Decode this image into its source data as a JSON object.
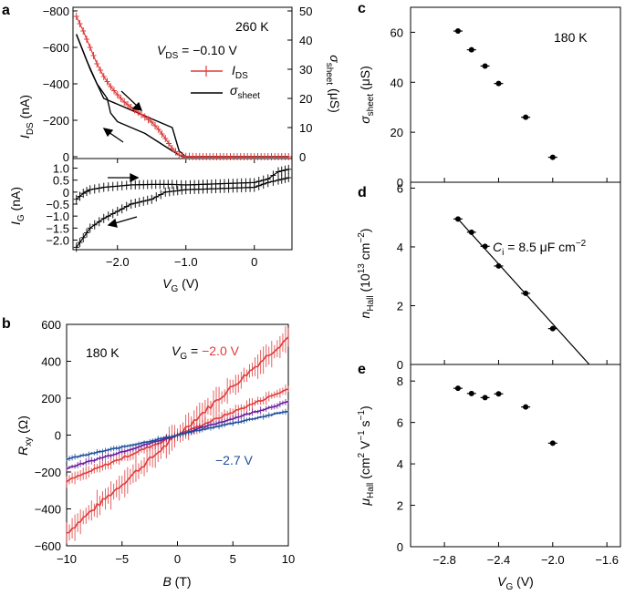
{
  "colors": {
    "ids": "#e03a3a",
    "sigma": "#000000",
    "ig": "#000000",
    "b_red": "#e03a3a",
    "b_purple": "#6a1b9a",
    "b_blue": "#1f4e99",
    "points": "#000000"
  },
  "chart_data": [
    {
      "panel": "a",
      "type": "line",
      "annotations": {
        "temperature": "260 K",
        "vds": "V",
        "vds_sub": "DS",
        "vds_value": " = −0.10 V"
      },
      "legend": [
        {
          "key": "ids",
          "name": "I",
          "sub": "DS"
        },
        {
          "key": "sigma",
          "name": "σ",
          "sub": "sheet"
        }
      ],
      "top": {
        "ylabel_left": {
          "main": "I",
          "sub": "DS",
          "unit": " (nA)"
        },
        "ylabel_right": {
          "main": "σ",
          "sub": "sheet",
          "unit": " (μS)"
        },
        "ylim_left": [
          0,
          -800
        ],
        "yticks_left": [
          "−800",
          "−600",
          "−400",
          "−200",
          "0"
        ],
        "ytick_values_left": [
          -800,
          -600,
          -400,
          -200,
          0
        ],
        "ylim_right": [
          0,
          50
        ],
        "yticks_right": [
          "50",
          "40",
          "30",
          "20",
          "10",
          "0"
        ],
        "ytick_values_right": [
          50,
          40,
          30,
          20,
          10,
          0
        ],
        "ids_sweep": {
          "x": [
            -2.6,
            -2.5,
            -2.4,
            -2.3,
            -2.2,
            -2.1,
            -2.0,
            -1.9,
            -1.8,
            -1.7,
            -1.6,
            -1.5,
            -1.4,
            -1.3,
            -1.2,
            -1.1,
            -1.0,
            -0.8,
            -0.5,
            0.0,
            0.5
          ],
          "y": [
            -770,
            -690,
            -600,
            -510,
            -440,
            -385,
            -340,
            -300,
            -270,
            -245,
            -218,
            -190,
            -150,
            -100,
            -45,
            -10,
            -2,
            0,
            0,
            0,
            0
          ]
        },
        "sigma_sweep_down": {
          "x": [
            0.5,
            -1.05,
            -1.05,
            -1.2,
            -1.4,
            -1.6,
            -1.8,
            -2.0,
            -2.1,
            -2.15,
            -2.3,
            -2.45,
            -2.6
          ],
          "y": [
            0,
            0,
            0,
            2,
            5,
            8,
            10,
            12,
            15,
            20,
            25,
            33,
            42
          ]
        },
        "sigma_sweep_up": {
          "x": [
            -2.6,
            -2.5,
            -2.4,
            -2.3,
            -2.2,
            -2.0,
            -1.8,
            -1.6,
            -1.4,
            -1.2,
            -1.1,
            -1.0,
            0.5
          ],
          "y": [
            42,
            36,
            30,
            25,
            20,
            18,
            16,
            14,
            12,
            10,
            2,
            0,
            0
          ]
        }
      },
      "bottom": {
        "ylabel": {
          "main": "I",
          "sub": "G",
          "unit": " (nA)"
        },
        "ylim": [
          -2.4,
          1.4
        ],
        "yticks": [
          "1.0",
          "0.5",
          "0",
          "−0.5",
          "−1.0",
          "−1.5",
          "−2.0"
        ],
        "ytick_values": [
          1.0,
          0.5,
          0,
          -0.5,
          -1.0,
          -1.5,
          -2.0
        ],
        "ig_forward": {
          "x": [
            -2.6,
            -2.5,
            -2.4,
            -2.2,
            -2.0,
            -1.8,
            -1.5,
            -1.2,
            -1.0,
            -0.5,
            0.0,
            0.2,
            0.35,
            0.5
          ],
          "y": [
            -0.3,
            -0.05,
            0.1,
            0.2,
            0.25,
            0.3,
            0.32,
            0.32,
            0.3,
            0.35,
            0.4,
            0.55,
            0.85,
            0.95
          ]
        },
        "ig_reverse": {
          "x": [
            0.5,
            0.35,
            0.2,
            0.0,
            -0.5,
            -1.0,
            -1.3,
            -1.5,
            -1.8,
            -2.0,
            -2.2,
            -2.4,
            -2.5,
            -2.6
          ],
          "y": [
            0.6,
            0.5,
            0.4,
            0.2,
            0.15,
            0.1,
            0.0,
            -0.3,
            -0.5,
            -0.8,
            -1.1,
            -1.5,
            -1.9,
            -2.3
          ]
        }
      },
      "xlabel": {
        "main": "V",
        "sub": "G",
        "unit": " (V)"
      },
      "xlim": [
        -2.65,
        0.55
      ],
      "xticks": [
        "−2.0",
        "−1.0",
        "0"
      ],
      "xtick_values": [
        -2.0,
        -1.0,
        0.0
      ]
    },
    {
      "panel": "b",
      "type": "line",
      "annotations": {
        "temperature": "180 K",
        "vg_label": "V",
        "vg_sub": "G",
        "vg_eq": " = ",
        "vg_top": "−2.0 V",
        "vg_bottom": "−2.7 V"
      },
      "xlabel": {
        "main": "B",
        "unit": " (T)"
      },
      "ylabel": {
        "main": "R",
        "sub": "xy",
        "unit": " (Ω)"
      },
      "xlim": [
        -10,
        10
      ],
      "ylim": [
        -600,
        600
      ],
      "xticks": [
        "−10",
        "−5",
        "0",
        "5",
        "10"
      ],
      "xtick_values": [
        -10,
        -5,
        0,
        5,
        10
      ],
      "yticks": [
        "600",
        "400",
        "200",
        "0",
        "−200",
        "−400",
        "−600"
      ],
      "ytick_values": [
        600,
        400,
        200,
        0,
        -200,
        -400,
        -600
      ],
      "series": [
        {
          "name": "−2.0 V",
          "color_key": "b_red",
          "slope": 53,
          "noise": 55
        },
        {
          "name": "mid-red",
          "color_key": "b_red",
          "slope": 25,
          "noise": 25
        },
        {
          "name": "purple",
          "color_key": "b_purple",
          "slope": 18,
          "noise": 15
        },
        {
          "name": "−2.7 V",
          "color_key": "b_blue",
          "slope": 13,
          "noise": 12
        }
      ]
    },
    {
      "panel": "c",
      "type": "scatter",
      "annotations": {
        "temperature": "180 K"
      },
      "ylabel": {
        "main": "σ",
        "sub": "sheet",
        "unit": " (μS)"
      },
      "ylim": [
        0,
        70
      ],
      "yticks": [
        "60",
        "40",
        "20",
        "0"
      ],
      "ytick_values": [
        60,
        40,
        20,
        0
      ],
      "x": [
        -2.7,
        -2.6,
        -2.5,
        -2.4,
        -2.2,
        -2.0
      ],
      "y": [
        60.5,
        53,
        46.5,
        39.5,
        26,
        10
      ]
    },
    {
      "panel": "d",
      "type": "scatter",
      "annotations": {
        "ci_label": "C",
        "ci_sub": "i",
        "ci_value": " = 8.5 μF cm",
        "ci_exp": "−2"
      },
      "ylabel": {
        "main": "n",
        "sub": "Hall",
        "unit": " (10",
        "unit_exp": "13",
        "unit_tail": " cm",
        "unit_exp2": "−2",
        "unit_end": ")"
      },
      "ylim": [
        0,
        6.2
      ],
      "yticks": [
        "6",
        "4",
        "2",
        "0"
      ],
      "ytick_values": [
        6,
        4,
        2,
        0
      ],
      "x": [
        -2.7,
        -2.6,
        -2.5,
        -2.4,
        -2.2,
        -2.0
      ],
      "y": [
        4.95,
        4.5,
        4.02,
        3.35,
        2.42,
        1.22
      ],
      "fit": {
        "x": [
          -2.7,
          -1.73
        ],
        "y": [
          4.95,
          0
        ]
      }
    },
    {
      "panel": "e",
      "type": "scatter",
      "ylabel": {
        "main": "μ",
        "sub": "Hall",
        "unit": " (cm",
        "e1": "2",
        "mid": " V",
        "e2": "−1",
        "mid2": " s",
        "e3": "−1",
        "end": ")"
      },
      "ylim": [
        0,
        8.8
      ],
      "yticks": [
        "8",
        "6",
        "4",
        "2",
        "0"
      ],
      "ytick_values": [
        8,
        6,
        4,
        2,
        0
      ],
      "x": [
        -2.7,
        -2.6,
        -2.5,
        -2.4,
        -2.2,
        -2.0
      ],
      "y": [
        7.65,
        7.4,
        7.2,
        7.38,
        6.75,
        5.0
      ],
      "xlabel": {
        "main": "V",
        "sub": "G",
        "unit": " (V)"
      },
      "xlim": [
        -3.05,
        -1.5
      ],
      "xticks": [
        "−2.8",
        "−2.4",
        "−2.0",
        "−1.6"
      ],
      "xtick_values": [
        -2.8,
        -2.4,
        -2.0,
        -1.6
      ]
    }
  ],
  "panel_labels": {
    "a": "a",
    "b": "b",
    "c": "c",
    "d": "d",
    "e": "e"
  }
}
